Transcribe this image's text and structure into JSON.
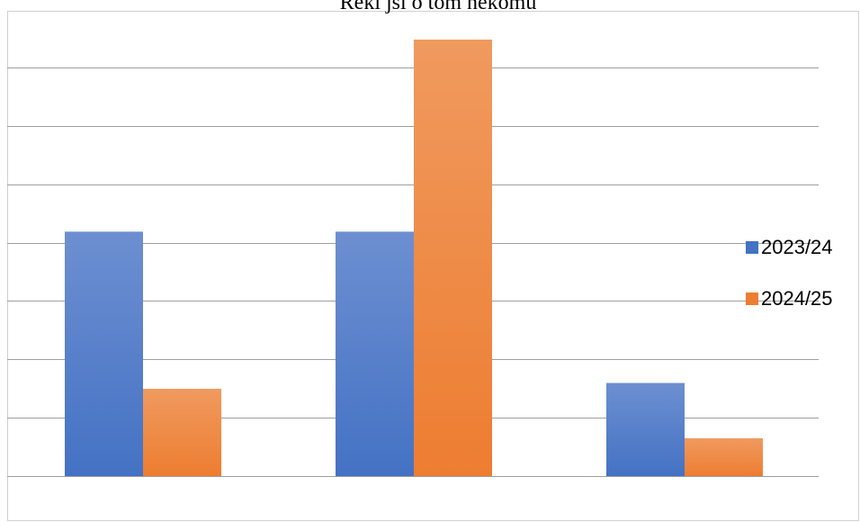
{
  "chart_data": {
    "type": "bar",
    "title": "Řekl jsi o tom někomu",
    "categories": [
      "",
      "",
      ""
    ],
    "series": [
      {
        "name": "2023/24",
        "values": [
          4.2,
          4.2,
          1.6
        ],
        "color": "#4472C4",
        "color_light": "#6D8FD1"
      },
      {
        "name": "2024/25",
        "values": [
          1.5,
          7.5,
          0.65
        ],
        "color": "#ED7D31",
        "color_light": "#F09A5F"
      }
    ],
    "ylim": [
      0,
      7.5
    ],
    "grid": true,
    "legend_position": "right",
    "xlabel": "",
    "ylabel": ""
  }
}
